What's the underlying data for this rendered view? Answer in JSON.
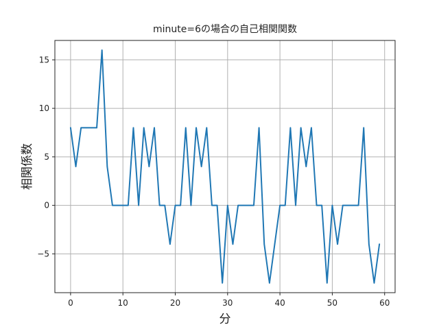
{
  "chart_data": {
    "type": "line",
    "title": "minute=6の場合の自己相関関数",
    "xlabel": "分",
    "ylabel": "相関係数",
    "xlim": [
      -3,
      62
    ],
    "ylim": [
      -9,
      17
    ],
    "xticks": [
      0,
      10,
      20,
      30,
      40,
      50,
      60
    ],
    "yticks": [
      -5,
      0,
      5,
      10,
      15
    ],
    "xtick_labels": [
      "0",
      "10",
      "20",
      "30",
      "40",
      "50",
      "60"
    ],
    "ytick_labels": [
      "−5",
      "0",
      "5",
      "10",
      "15"
    ],
    "grid": true,
    "series": [
      {
        "color": "#1f77b4",
        "x": [
          0,
          1,
          2,
          3,
          4,
          5,
          6,
          7,
          8,
          9,
          10,
          11,
          12,
          13,
          14,
          15,
          16,
          17,
          18,
          19,
          20,
          21,
          22,
          23,
          24,
          25,
          26,
          27,
          28,
          29,
          30,
          31,
          32,
          33,
          34,
          35,
          36,
          37,
          38,
          39,
          40,
          41,
          42,
          43,
          44,
          45,
          46,
          47,
          48,
          49,
          50,
          51,
          52,
          53,
          54,
          55,
          56,
          57,
          58,
          59
        ],
        "y": [
          8,
          4,
          8,
          8,
          8,
          8,
          16,
          4,
          0,
          0,
          0,
          0,
          8,
          0,
          8,
          4,
          8,
          0,
          0,
          -4,
          0,
          0,
          8,
          0,
          8,
          4,
          8,
          0,
          0,
          -8,
          0,
          -4,
          0,
          0,
          0,
          0,
          8,
          -4,
          -8,
          -4,
          0,
          0,
          8,
          0,
          8,
          4,
          8,
          0,
          0,
          -8,
          0,
          -4,
          0,
          0,
          0,
          0,
          8,
          -4,
          -8,
          -4
        ]
      }
    ]
  }
}
